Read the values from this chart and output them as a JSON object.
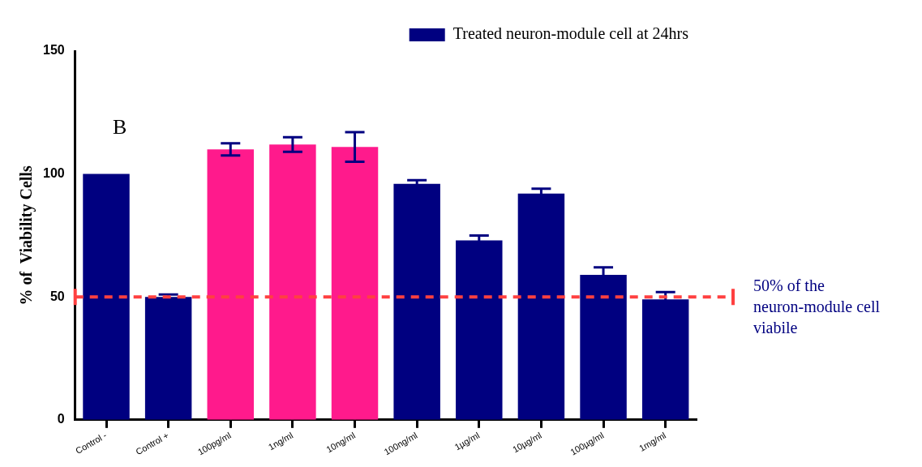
{
  "chart_data": {
    "type": "bar",
    "ylabel": "% of  Viability Cells",
    "categories": [
      "Control -",
      "Control +",
      "100pg/ml",
      "1ng/ml",
      "10ng/ml",
      "100ng/ml",
      "1µg/ml",
      "10µg/ml",
      "100µg/ml",
      "1mg/ml"
    ],
    "series": [
      {
        "name": "Treated neuron-module cell at 24hrs",
        "color": "#000080",
        "values": [
          100,
          50,
          110,
          112,
          111,
          96,
          73,
          92,
          59,
          49
        ],
        "colors": [
          "#000080",
          "#000080",
          "#ff1a8c",
          "#ff1a8c",
          "#ff1a8c",
          "#000080",
          "#000080",
          "#000080",
          "#000080",
          "#000080"
        ],
        "errors": [
          null,
          1,
          2.5,
          3,
          6,
          1.5,
          2,
          2,
          3,
          3
        ]
      }
    ],
    "ylim": [
      0,
      150
    ],
    "yticks": [
      0,
      50,
      100,
      150
    ],
    "ref_lines": [
      {
        "axis": "y",
        "value": 50,
        "label": "50% of the neuron-module cell viabile",
        "color": "#ff4040",
        "line_style": "dashed"
      }
    ],
    "annotations": [
      "B"
    ],
    "legend": "top right",
    "grid": false
  }
}
